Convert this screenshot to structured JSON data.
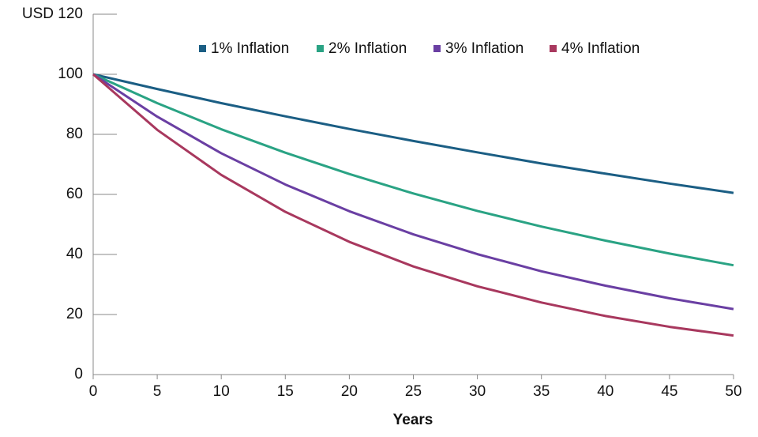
{
  "chart_data": {
    "type": "line",
    "x": [
      0,
      5,
      10,
      15,
      20,
      25,
      30,
      35,
      40,
      45,
      50
    ],
    "xlabel": "Years",
    "series": [
      {
        "name": "1% Inflation",
        "color": "#1b5e84",
        "values": [
          100,
          95.1,
          90.4,
          86.0,
          81.8,
          77.8,
          74.0,
          70.3,
          66.9,
          63.6,
          60.5
        ]
      },
      {
        "name": "2% Inflation",
        "color": "#2aa384",
        "values": [
          100,
          90.4,
          81.7,
          73.9,
          66.8,
          60.3,
          54.5,
          49.3,
          44.6,
          40.3,
          36.4
        ]
      },
      {
        "name": "3% Inflation",
        "color": "#6a3fa3",
        "values": [
          100,
          85.9,
          73.7,
          63.3,
          54.4,
          46.7,
          40.1,
          34.4,
          29.6,
          25.4,
          21.8
        ]
      },
      {
        "name": "4% Inflation",
        "color": "#a8385e",
        "values": [
          100,
          81.5,
          66.5,
          54.2,
          44.2,
          36.0,
          29.4,
          24.0,
          19.5,
          15.9,
          13.0
        ]
      }
    ],
    "xlim": [
      0,
      50
    ],
    "xticks": [
      0,
      5,
      10,
      15,
      20,
      25,
      30,
      35,
      40,
      45,
      50
    ],
    "ylim": [
      0,
      120
    ],
    "yticks": [
      0,
      20,
      40,
      60,
      80,
      100,
      {
        "value": 120,
        "label": "USD 120"
      }
    ],
    "legend": "top",
    "grid": false
  }
}
